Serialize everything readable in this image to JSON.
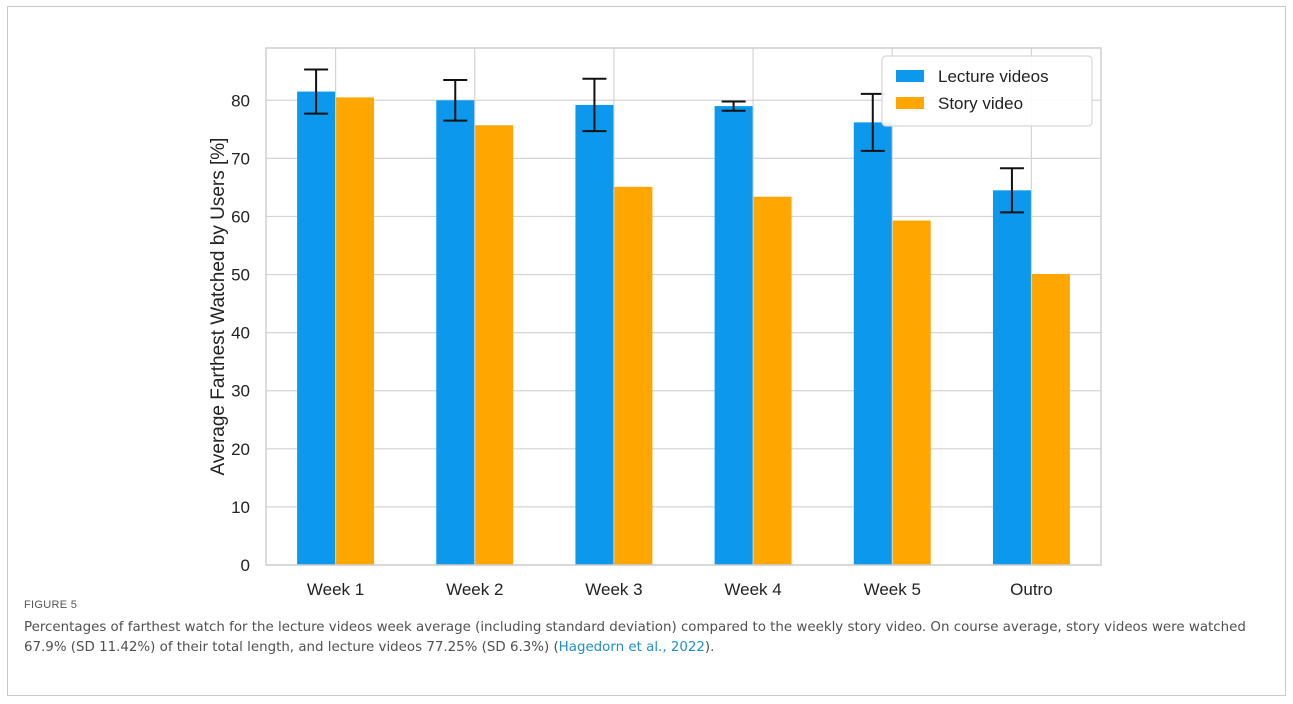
{
  "chart_data": {
    "type": "bar",
    "categories": [
      "Week 1",
      "Week 2",
      "Week 3",
      "Week 4",
      "Week 5",
      "Outro"
    ],
    "series": [
      {
        "name": "Lecture videos",
        "color": "#0c98ec",
        "values": [
          81.5,
          80.0,
          79.2,
          79.0,
          76.2,
          64.5
        ],
        "error": [
          3.8,
          3.5,
          4.5,
          0.8,
          4.9,
          3.8
        ]
      },
      {
        "name": "Story video",
        "color": "#ffa600",
        "values": [
          80.5,
          75.7,
          65.1,
          63.4,
          59.3,
          50.1
        ]
      }
    ],
    "xlabel": "",
    "ylabel": "Average Farthest Watched by Users [%]",
    "ylim": [
      0,
      89
    ],
    "yticks": [
      0,
      10,
      20,
      30,
      40,
      50,
      60,
      70,
      80
    ],
    "grid": true,
    "legend": "top-right"
  },
  "figure": {
    "label": "FIGURE 5",
    "caption_text": "Percentages of farthest watch for the lecture videos week average (including standard deviation) compared to the weekly story video. On course average, story videos were watched 67.9% (SD 11.42%) of their total length, and lecture videos 77.25% (SD 6.3%) (",
    "citation": "Hagedorn et al., 2022",
    "caption_end": ")."
  }
}
